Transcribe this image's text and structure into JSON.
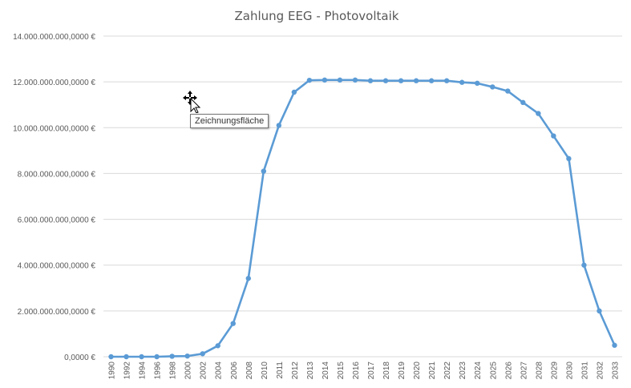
{
  "chart_data": {
    "type": "line",
    "title": "Zahlung EEG - Photovoltaik",
    "xlabel": "",
    "ylabel": "",
    "ylim": [
      0,
      14000000000
    ],
    "y_ticks": [
      0,
      2000000000,
      4000000000,
      6000000000,
      8000000000,
      10000000000,
      12000000000,
      14000000000
    ],
    "y_tick_labels": [
      "0,0000 €",
      "2.000.000.000,0000 €",
      "4.000.000.000,0000 €",
      "6.000.000.000,0000 €",
      "8.000.000.000,0000 €",
      "10.000.000.000,0000 €",
      "12.000.000.000,0000 €",
      "14.000.000.000,0000 €"
    ],
    "grid": true,
    "legend": "none",
    "categories": [
      "1990",
      "1992",
      "1994",
      "1996",
      "1998",
      "2000",
      "2002",
      "2004",
      "2006",
      "2008",
      "2010",
      "2011",
      "2012",
      "2013",
      "2014",
      "2015",
      "2016",
      "2017",
      "2018",
      "2019",
      "2020",
      "2021",
      "2022",
      "2023",
      "2024",
      "2025",
      "2026",
      "2027",
      "2028",
      "2029",
      "2030",
      "2031",
      "2032",
      "2033"
    ],
    "series": [
      {
        "color": "#5b9bd5",
        "values": [
          0,
          0,
          0,
          0,
          20000000,
          30000000,
          130000000,
          480000000,
          1450000000,
          3420000000,
          8100000000,
          10100000000,
          11550000000,
          12070000000,
          12080000000,
          12080000000,
          12080000000,
          12050000000,
          12050000000,
          12050000000,
          12050000000,
          12050000000,
          12050000000,
          11980000000,
          11940000000,
          11780000000,
          11600000000,
          11100000000,
          10620000000,
          9640000000,
          8650000000,
          4000000000,
          2000000000,
          500000000
        ]
      }
    ]
  },
  "tooltip": {
    "text": "Zeichnungsfläche"
  },
  "icons": {
    "cursor": "move-cursor-icon"
  }
}
